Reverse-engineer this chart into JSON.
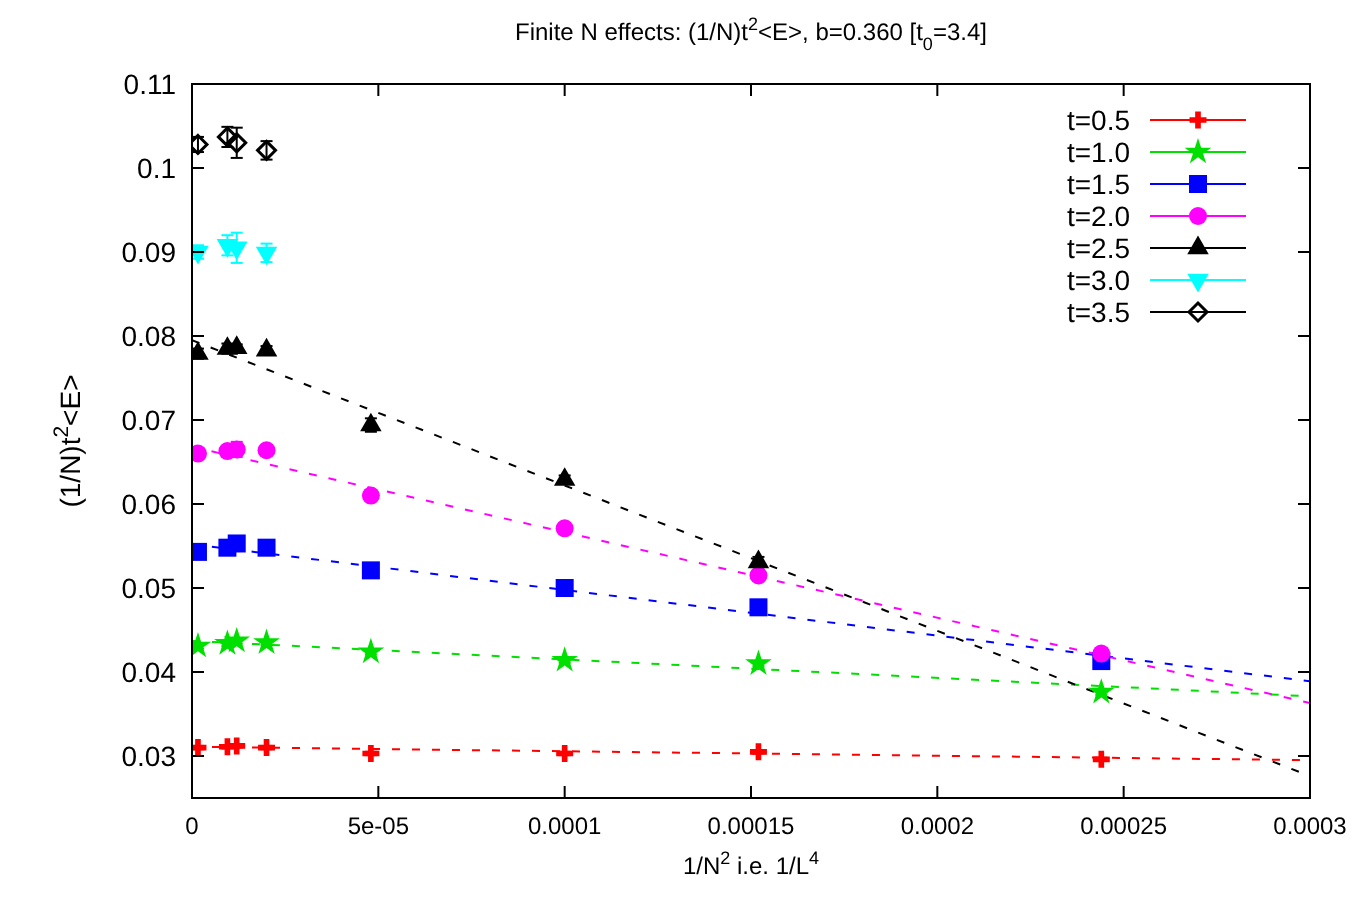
{
  "chart_data": {
    "type": "scatter",
    "title": "Finite N effects: (1/N)t$^{2}$<E>, b=0.360 [t$_{0}$=3.4]",
    "xlabel": "1/N$^{2}$ i.e. 1/L$^{4}$",
    "ylabel": "(1/N)t$^{2}$<E>",
    "xlim": [
      0,
      0.0003
    ],
    "ylim": [
      0.025,
      0.11
    ],
    "xticks": [
      0,
      {
        "value": 5e-05,
        "label": "5e-05"
      },
      0.0001,
      0.00015,
      0.0002,
      0.00025,
      0.0003
    ],
    "yticks": [
      0.03,
      0.04,
      0.05,
      0.06,
      0.07,
      0.08,
      0.09,
      0.1,
      0.11
    ],
    "grid": false,
    "legend": "top right",
    "series": [
      {
        "name": "t=0.5",
        "marker": "cross",
        "color": "#ff0000",
        "x": [
          1.6e-06,
          9.5e-06,
          1.2e-05,
          2e-05,
          4.8e-05,
          0.0001,
          0.000152,
          0.000244
        ],
        "values": [
          0.031,
          0.0311,
          0.0312,
          0.031,
          0.0303,
          0.0303,
          0.0305,
          0.0296
        ],
        "errors": [
          0.0002,
          0.0002,
          0.0002,
          0.0002,
          0.0002,
          0.0002,
          0.0002,
          0.0002
        ]
      },
      {
        "name": "t=1.0",
        "marker": "star",
        "color": "#00e000",
        "x": [
          1.6e-06,
          9.5e-06,
          1.2e-05,
          2e-05,
          4.8e-05,
          0.0001,
          0.000152,
          0.000244
        ],
        "values": [
          0.0431,
          0.0434,
          0.0437,
          0.0435,
          0.0424,
          0.0414,
          0.041,
          0.0376
        ],
        "errors": [
          0.0003,
          0.0003,
          0.0003,
          0.0003,
          0.0003,
          0.0003,
          0.0003,
          0.0003
        ]
      },
      {
        "name": "t=1.5",
        "marker": "square",
        "color": "#0000ff",
        "x": [
          1.6e-06,
          9.5e-06,
          1.2e-05,
          2e-05,
          4.8e-05,
          0.0001,
          0.000152,
          0.000244
        ],
        "values": [
          0.0543,
          0.0548,
          0.0553,
          0.0548,
          0.0521,
          0.05,
          0.0477,
          0.0413
        ],
        "errors": [
          0.0003,
          0.0003,
          0.0003,
          0.0003,
          0.0003,
          0.0003,
          0.0003,
          0.0003
        ]
      },
      {
        "name": "t=2.0",
        "marker": "circle",
        "color": "#ff00ff",
        "x": [
          1.6e-06,
          9.5e-06,
          1.2e-05,
          2e-05,
          4.8e-05,
          0.0001,
          0.000152,
          0.000244
        ],
        "values": [
          0.066,
          0.0663,
          0.0665,
          0.0664,
          0.061,
          0.0571,
          0.0515,
          0.0422
        ],
        "errors": [
          0.0004,
          0.0004,
          0.0009,
          0.0004,
          0.0004,
          0.0004,
          0.0004,
          0.0004
        ]
      },
      {
        "name": "t=2.5",
        "marker": "triangle",
        "color": "#000000",
        "x": [
          1.6e-06,
          9.5e-06,
          1.2e-05,
          2e-05,
          4.8e-05,
          0.0001,
          0.000152
        ],
        "values": [
          0.0779,
          0.0785,
          0.0786,
          0.0783,
          0.0694,
          0.0629,
          0.0531
        ],
        "errors": [
          0.0006,
          0.0006,
          0.0004,
          0.0005,
          0.0008,
          0.0005,
          0.0006
        ]
      },
      {
        "name": "t=3.0",
        "marker": "triangle-down",
        "color": "#00ffff",
        "x": [
          1.6e-06,
          9.5e-06,
          1.2e-05,
          2e-05
        ],
        "values": [
          0.09,
          0.0908,
          0.0905,
          0.0899
        ],
        "errors": [
          0.0008,
          0.0012,
          0.0018,
          0.0011
        ]
      },
      {
        "name": "t=3.5",
        "marker": "diamond",
        "color": "#000000",
        "x": [
          1.6e-06,
          9.5e-06,
          1.2e-05,
          2e-05
        ],
        "values": [
          0.1028,
          0.1037,
          0.103,
          0.1021
        ],
        "errors": [
          0.0009,
          0.0012,
          0.0018,
          0.0011
        ]
      },
      {
        "type": "line",
        "line_style": "dashed",
        "color": "#ff0000",
        "x": [
          0,
          0.0003
        ],
        "values": [
          0.0311,
          0.0295
        ]
      },
      {
        "type": "line",
        "line_style": "dashed",
        "color": "#00e000",
        "x": [
          0,
          0.0003
        ],
        "values": [
          0.0437,
          0.0371
        ]
      },
      {
        "type": "line",
        "line_style": "dashed",
        "color": "#0000ff",
        "x": [
          0,
          0.0003
        ],
        "values": [
          0.0552,
          0.0389
        ]
      },
      {
        "type": "line",
        "line_style": "dashed",
        "color": "#ff00ff",
        "x": [
          0,
          0.0003
        ],
        "values": [
          0.0668,
          0.0363
        ]
      },
      {
        "type": "line",
        "line_style": "dashed",
        "color": "#000000",
        "x": [
          0,
          0.0003
        ],
        "values": [
          0.0795,
          0.0276
        ]
      }
    ]
  }
}
